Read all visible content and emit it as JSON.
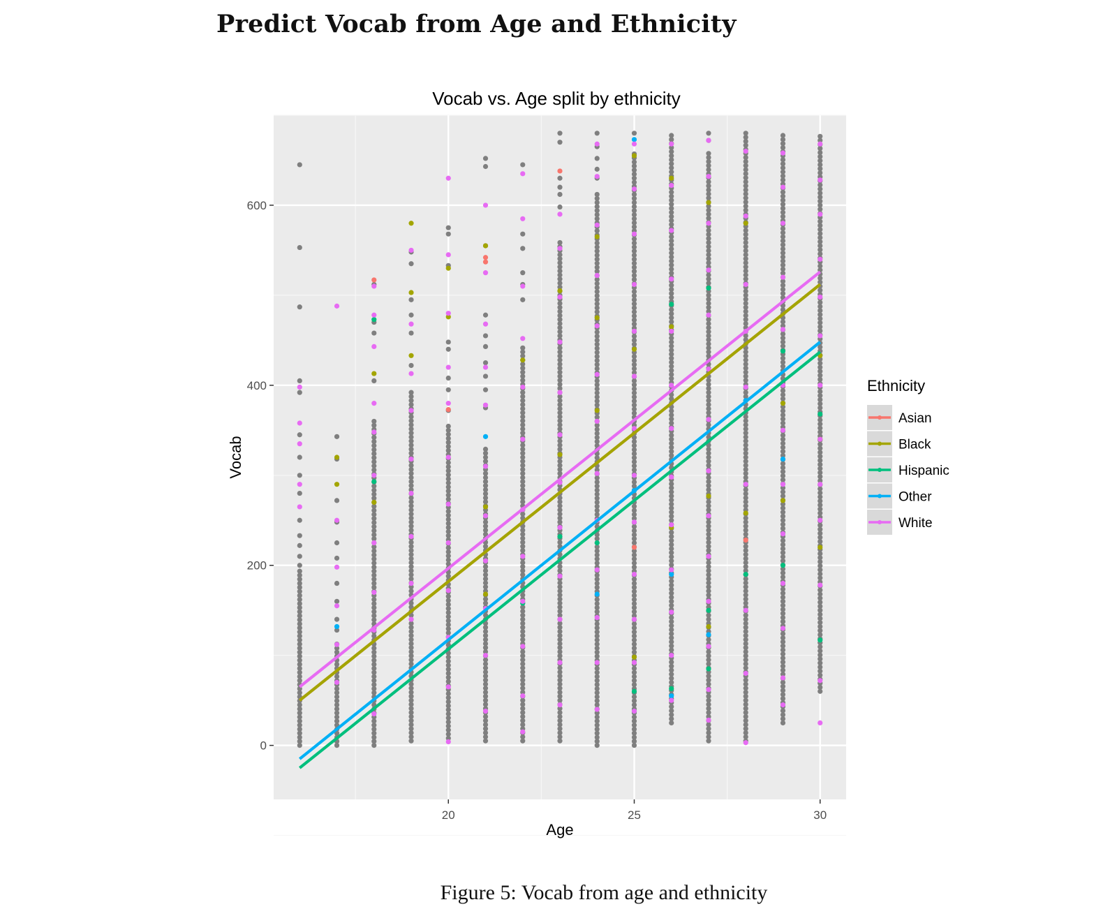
{
  "page": {
    "heading": "Predict Vocab from Age and Ethnicity",
    "caption": "Figure 5: Vocab from age and ethnicity"
  },
  "chart_data": {
    "type": "scatter",
    "title": "Vocab vs. Age split by ethnicity",
    "xlabel": "Age",
    "ylabel": "Vocab",
    "xlim": [
      15.3,
      30.7
    ],
    "ylim": [
      -60,
      700
    ],
    "xticks": [
      20,
      25,
      30
    ],
    "yticks": [
      0,
      200,
      400,
      600
    ],
    "grid": true,
    "legend_title": "Ethnicity",
    "legend_position": "right",
    "series": [
      {
        "name": "Asian",
        "color": "#F8766D",
        "fit": {
          "x": [
            16,
            30
          ],
          "y": [
            50,
            512
          ]
        },
        "points": [
          [
            18,
            517
          ],
          [
            21,
            537
          ],
          [
            21,
            542
          ],
          [
            23,
            638
          ],
          [
            25,
            220
          ],
          [
            28,
            228
          ],
          [
            20,
            373
          ]
        ]
      },
      {
        "name": "Black",
        "color": "#A3A500",
        "fit": {
          "x": [
            16,
            30
          ],
          "y": [
            50,
            512
          ]
        },
        "points": [
          [
            17,
            320
          ],
          [
            17,
            290
          ],
          [
            18,
            413
          ],
          [
            18,
            270
          ],
          [
            19,
            580
          ],
          [
            19,
            503
          ],
          [
            19,
            433
          ],
          [
            20,
            530
          ],
          [
            20,
            476
          ],
          [
            21,
            555
          ],
          [
            21,
            265
          ],
          [
            21,
            168
          ],
          [
            22,
            428
          ],
          [
            23,
            505
          ],
          [
            23,
            323
          ],
          [
            24,
            565
          ],
          [
            24,
            475
          ],
          [
            24,
            372
          ],
          [
            25,
            655
          ],
          [
            25,
            440
          ],
          [
            25,
            98
          ],
          [
            26,
            630
          ],
          [
            26,
            465
          ],
          [
            26,
            242
          ],
          [
            27,
            603
          ],
          [
            27,
            277
          ],
          [
            27,
            132
          ],
          [
            28,
            580
          ],
          [
            28,
            258
          ],
          [
            29,
            272
          ],
          [
            29,
            380
          ],
          [
            30,
            220
          ],
          [
            30,
            340
          ],
          [
            30,
            433
          ]
        ]
      },
      {
        "name": "Hispanic",
        "color": "#00BF7D",
        "fit": {
          "x": [
            16,
            30
          ],
          "y": [
            -25,
            437
          ]
        },
        "points": [
          [
            18,
            293
          ],
          [
            18,
            473
          ],
          [
            22,
            158
          ],
          [
            23,
            232
          ],
          [
            24,
            225
          ],
          [
            25,
            60
          ],
          [
            25,
            38
          ],
          [
            26,
            490
          ],
          [
            26,
            63
          ],
          [
            27,
            150
          ],
          [
            27,
            85
          ],
          [
            27,
            508
          ],
          [
            28,
            190
          ],
          [
            29,
            200
          ],
          [
            29,
            438
          ],
          [
            30,
            117
          ],
          [
            30,
            368
          ]
        ]
      },
      {
        "name": "Other",
        "color": "#00B0F6",
        "fit": {
          "x": [
            16,
            30
          ],
          "y": [
            -15,
            448
          ]
        },
        "points": [
          [
            17,
            132
          ],
          [
            21,
            343
          ],
          [
            24,
            168
          ],
          [
            25,
            673
          ],
          [
            25,
            283
          ],
          [
            26,
            55
          ],
          [
            26,
            190
          ],
          [
            27,
            123
          ],
          [
            28,
            383
          ],
          [
            29,
            318
          ]
        ]
      },
      {
        "name": "White",
        "color": "#E76BF3",
        "fit": {
          "x": [
            16,
            30
          ],
          "y": [
            65,
            526
          ]
        },
        "points": [
          [
            16,
            398
          ],
          [
            16,
            358
          ],
          [
            16,
            335
          ],
          [
            16,
            290
          ],
          [
            16,
            265
          ],
          [
            17,
            488
          ],
          [
            17,
            250
          ],
          [
            17,
            198
          ],
          [
            17,
            155
          ],
          [
            17,
            112
          ],
          [
            17,
            70
          ],
          [
            18,
            510
          ],
          [
            18,
            478
          ],
          [
            18,
            443
          ],
          [
            18,
            380
          ],
          [
            18,
            348
          ],
          [
            18,
            300
          ],
          [
            18,
            225
          ],
          [
            18,
            170
          ],
          [
            18,
            128
          ],
          [
            18,
            35
          ],
          [
            19,
            550
          ],
          [
            19,
            468
          ],
          [
            19,
            413
          ],
          [
            19,
            372
          ],
          [
            19,
            318
          ],
          [
            19,
            280
          ],
          [
            19,
            232
          ],
          [
            19,
            180
          ],
          [
            19,
            140
          ],
          [
            20,
            630
          ],
          [
            20,
            545
          ],
          [
            20,
            480
          ],
          [
            20,
            420
          ],
          [
            20,
            380
          ],
          [
            20,
            320
          ],
          [
            20,
            268
          ],
          [
            20,
            225
          ],
          [
            20,
            172
          ],
          [
            20,
            120
          ],
          [
            20,
            65
          ],
          [
            20,
            4
          ],
          [
            21,
            600
          ],
          [
            21,
            525
          ],
          [
            21,
            468
          ],
          [
            21,
            420
          ],
          [
            21,
            378
          ],
          [
            21,
            310
          ],
          [
            21,
            255
          ],
          [
            21,
            205
          ],
          [
            21,
            152
          ],
          [
            21,
            100
          ],
          [
            21,
            38
          ],
          [
            22,
            635
          ],
          [
            22,
            585
          ],
          [
            22,
            510
          ],
          [
            22,
            452
          ],
          [
            22,
            398
          ],
          [
            22,
            340
          ],
          [
            22,
            262
          ],
          [
            22,
            210
          ],
          [
            22,
            160
          ],
          [
            22,
            110
          ],
          [
            22,
            55
          ],
          [
            22,
            15
          ],
          [
            23,
            590
          ],
          [
            23,
            552
          ],
          [
            23,
            498
          ],
          [
            23,
            448
          ],
          [
            23,
            392
          ],
          [
            23,
            345
          ],
          [
            23,
            292
          ],
          [
            23,
            242
          ],
          [
            23,
            188
          ],
          [
            23,
            140
          ],
          [
            23,
            92
          ],
          [
            23,
            45
          ],
          [
            24,
            668
          ],
          [
            24,
            632
          ],
          [
            24,
            578
          ],
          [
            24,
            522
          ],
          [
            24,
            466
          ],
          [
            24,
            412
          ],
          [
            24,
            360
          ],
          [
            24,
            302
          ],
          [
            24,
            250
          ],
          [
            24,
            195
          ],
          [
            24,
            142
          ],
          [
            24,
            92
          ],
          [
            24,
            40
          ],
          [
            25,
            668
          ],
          [
            25,
            618
          ],
          [
            25,
            568
          ],
          [
            25,
            512
          ],
          [
            25,
            460
          ],
          [
            25,
            410
          ],
          [
            25,
            352
          ],
          [
            25,
            300
          ],
          [
            25,
            248
          ],
          [
            25,
            190
          ],
          [
            25,
            140
          ],
          [
            25,
            92
          ],
          [
            25,
            38
          ],
          [
            26,
            668
          ],
          [
            26,
            622
          ],
          [
            26,
            572
          ],
          [
            26,
            518
          ],
          [
            26,
            460
          ],
          [
            26,
            400
          ],
          [
            26,
            352
          ],
          [
            26,
            298
          ],
          [
            26,
            245
          ],
          [
            26,
            195
          ],
          [
            26,
            148
          ],
          [
            26,
            100
          ],
          [
            26,
            50
          ],
          [
            27,
            672
          ],
          [
            27,
            632
          ],
          [
            27,
            580
          ],
          [
            27,
            528
          ],
          [
            27,
            478
          ],
          [
            27,
            418
          ],
          [
            27,
            362
          ],
          [
            27,
            305
          ],
          [
            27,
            255
          ],
          [
            27,
            210
          ],
          [
            27,
            160
          ],
          [
            27,
            110
          ],
          [
            27,
            62
          ],
          [
            27,
            28
          ],
          [
            28,
            660
          ],
          [
            28,
            588
          ],
          [
            28,
            512
          ],
          [
            28,
            460
          ],
          [
            28,
            398
          ],
          [
            28,
            290
          ],
          [
            28,
            150
          ],
          [
            28,
            80
          ],
          [
            28,
            3
          ],
          [
            29,
            658
          ],
          [
            29,
            620
          ],
          [
            29,
            580
          ],
          [
            29,
            520
          ],
          [
            29,
            462
          ],
          [
            29,
            400
          ],
          [
            29,
            350
          ],
          [
            29,
            290
          ],
          [
            29,
            235
          ],
          [
            29,
            180
          ],
          [
            29,
            130
          ],
          [
            29,
            75
          ],
          [
            29,
            45
          ],
          [
            30,
            668
          ],
          [
            30,
            628
          ],
          [
            30,
            590
          ],
          [
            30,
            540
          ],
          [
            30,
            498
          ],
          [
            30,
            455
          ],
          [
            30,
            400
          ],
          [
            30,
            340
          ],
          [
            30,
            290
          ],
          [
            30,
            250
          ],
          [
            30,
            178
          ],
          [
            30,
            72
          ],
          [
            30,
            25
          ]
        ]
      }
    ],
    "unlabeled_points": {
      "color": "#7F7F7F",
      "columns": [
        {
          "x": 16,
          "dense": [
            0,
            195
          ],
          "extra": [
            645,
            553,
            487,
            405,
            392,
            345,
            320,
            300,
            280,
            250,
            233,
            222,
            210,
            200
          ]
        },
        {
          "x": 17,
          "dense": [
            0,
            115
          ],
          "extra": [
            343,
            318,
            272,
            248,
            225,
            208,
            180,
            160,
            140,
            128
          ]
        },
        {
          "x": 18,
          "dense": [
            0,
            360
          ],
          "extra": [
            512,
            470,
            458,
            405
          ]
        },
        {
          "x": 19,
          "dense": [
            5,
            395
          ],
          "extra": [
            548,
            535,
            495,
            478,
            458,
            422
          ]
        },
        {
          "x": 20,
          "dense": [
            8,
            355
          ],
          "extra": [
            575,
            568,
            533,
            448,
            440,
            408,
            395,
            372
          ]
        },
        {
          "x": 21,
          "dense": [
            5,
            330
          ],
          "extra": [
            652,
            643,
            555,
            478,
            455,
            443,
            425,
            410,
            395,
            375
          ]
        },
        {
          "x": 22,
          "dense": [
            5,
            445
          ],
          "extra": [
            645,
            568,
            552,
            525,
            512,
            495
          ]
        },
        {
          "x": 23,
          "dense": [
            5,
            560
          ],
          "extra": [
            680,
            670,
            630,
            620,
            612,
            598
          ]
        },
        {
          "x": 24,
          "dense": [
            0,
            615
          ],
          "extra": [
            680,
            665,
            652,
            640,
            630
          ]
        },
        {
          "x": 25,
          "dense": [
            0,
            660
          ],
          "extra": [
            680
          ]
        },
        {
          "x": 26,
          "dense": [
            25,
            680
          ],
          "extra": []
        },
        {
          "x": 27,
          "dense": [
            5,
            660
          ],
          "extra": [
            680,
            672
          ]
        },
        {
          "x": 28,
          "dense": [
            5,
            680
          ],
          "extra": []
        },
        {
          "x": 29,
          "dense": [
            25,
            680
          ],
          "extra": []
        },
        {
          "x": 30,
          "dense": [
            60,
            680
          ],
          "extra": []
        }
      ]
    }
  }
}
